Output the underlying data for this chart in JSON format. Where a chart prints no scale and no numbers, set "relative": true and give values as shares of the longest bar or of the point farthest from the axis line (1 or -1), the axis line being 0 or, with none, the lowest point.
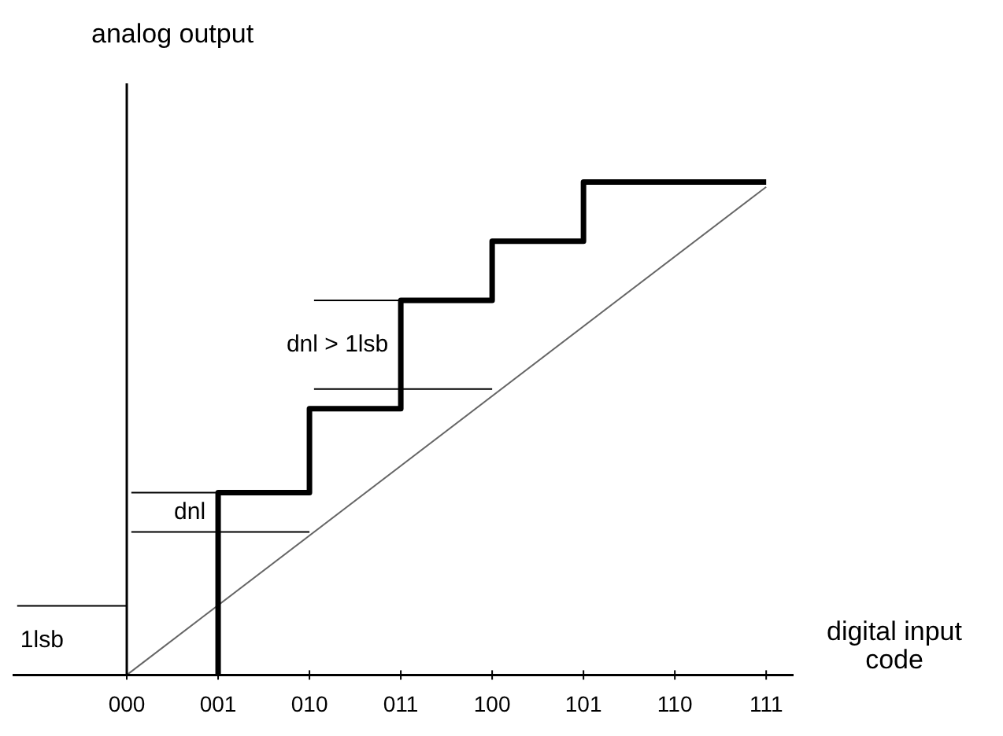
{
  "chart_data": {
    "type": "step",
    "relative": true,
    "xlabel": "digital input code",
    "ylabel": "analog output",
    "categories": [
      "000",
      "001",
      "010",
      "011",
      "100",
      "101",
      "110",
      "111"
    ],
    "series": [
      {
        "color": "#000000",
        "x": [
          "001",
          "001",
          "010",
          "011",
          "100",
          "101",
          "110",
          "111"
        ],
        "values": [
          0,
          0.15,
          0.37,
          0.54,
          0.76,
          0.88,
          1,
          1
        ]
      },
      {
        "type": "line",
        "color": "#666666",
        "x": [
          "000",
          "111"
        ],
        "values": [
          0,
          0.99
        ]
      }
    ],
    "ref_lines": [
      {
        "axis": "y",
        "value": 0.14,
        "label": "1lsb",
        "color": "#000000"
      },
      {
        "axis": "y",
        "value": 0.37,
        "label": "dnl",
        "color": "#000000"
      },
      {
        "axis": "y",
        "value": 0.29,
        "color": "#000000"
      },
      {
        "axis": "y",
        "value": 0.76,
        "label": "dnl > 1lsb",
        "color": "#000000"
      },
      {
        "axis": "y",
        "value": 0.58,
        "color": "#000000"
      }
    ],
    "legend": false,
    "marker": "none"
  }
}
